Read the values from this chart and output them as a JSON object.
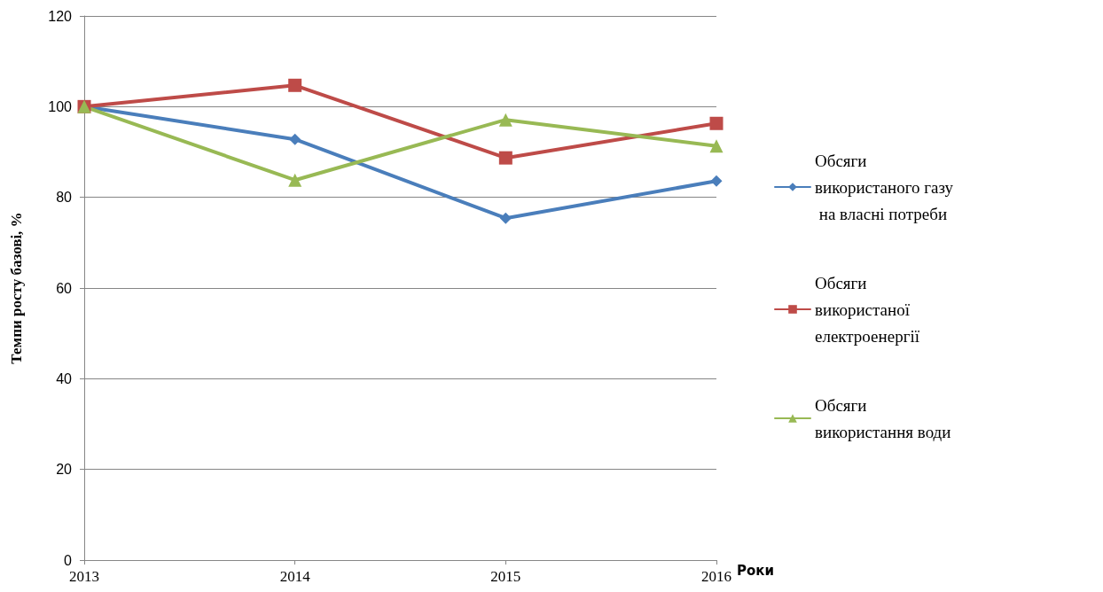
{
  "chart_data": {
    "type": "line",
    "xlabel": "Роки",
    "ylabel": "Темпи росту базові, %",
    "categories": [
      "2013",
      "2014",
      "2015",
      "2016"
    ],
    "series": [
      {
        "name": "Обсяги використаного газу на власні потреби",
        "color": "#4a7ebb",
        "marker": "diamond",
        "values": [
          100,
          92.8,
          75.4,
          83.6
        ]
      },
      {
        "name": "Обсяги використаної електроенергії",
        "color": "#be4b48",
        "marker": "square",
        "values": [
          100,
          104.7,
          88.7,
          96.3
        ]
      },
      {
        "name": "Обсяги використання води",
        "color": "#98b954",
        "marker": "triangle",
        "values": [
          100,
          83.8,
          97.1,
          91.3
        ]
      }
    ],
    "ylim": [
      0,
      120
    ],
    "yticks": [
      0,
      20,
      40,
      60,
      80,
      100,
      120
    ],
    "grid": "y",
    "legend": "right",
    "line_style": "solid"
  }
}
